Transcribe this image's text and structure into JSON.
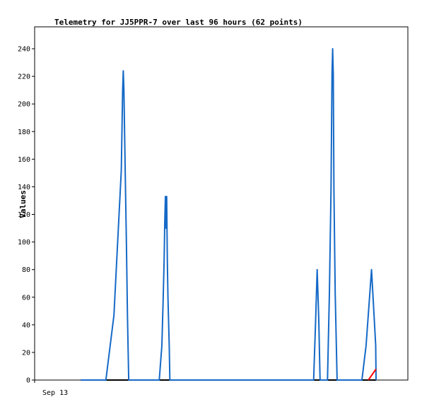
{
  "chart_data": {
    "type": "line",
    "title": "Telemetry for JJ5PPR-7 over last 96 hours (62 points)",
    "xlabel": "",
    "ylabel": "Values",
    "x_tick_labels": [
      "Sep 13"
    ],
    "xlim": [
      0,
      100
    ],
    "ylim": [
      0,
      248
    ],
    "y_ticks": [
      0,
      20,
      40,
      60,
      80,
      100,
      120,
      140,
      160,
      180,
      200,
      220,
      240
    ],
    "grid": false,
    "legend": "none",
    "series": [
      {
        "color": "#1569c7",
        "points": [
          [
            8.2,
            0
          ],
          [
            16.0,
            0
          ],
          [
            18.5,
            47
          ],
          [
            20.8,
            152
          ],
          [
            21.2,
            210
          ],
          [
            21.4,
            224
          ],
          [
            21.6,
            210
          ],
          [
            22.0,
            152
          ],
          [
            22.4,
            97
          ],
          [
            22.7,
            47
          ],
          [
            23.1,
            0
          ],
          [
            32.6,
            0
          ],
          [
            33.4,
            25
          ],
          [
            33.8,
            58
          ],
          [
            34.1,
            87
          ],
          [
            34.3,
            115
          ],
          [
            34.5,
            133
          ],
          [
            34.7,
            110
          ],
          [
            34.9,
            133
          ],
          [
            35.1,
            87
          ],
          [
            35.3,
            60
          ],
          [
            35.7,
            25
          ],
          [
            35.9,
            0
          ],
          [
            80.6,
            0
          ],
          [
            81.2,
            43
          ],
          [
            81.7,
            80
          ],
          [
            82.2,
            43
          ],
          [
            82.6,
            0
          ],
          [
            84.9,
            0
          ],
          [
            85.5,
            63
          ],
          [
            86.0,
            138
          ],
          [
            86.3,
            221
          ],
          [
            86.5,
            240
          ],
          [
            86.7,
            221
          ],
          [
            86.9,
            138
          ],
          [
            87.3,
            63
          ],
          [
            87.9,
            0
          ],
          [
            95.6,
            0
          ],
          [
            96.9,
            25
          ],
          [
            98.6,
            80
          ],
          [
            99.9,
            25
          ],
          [
            100.0,
            0
          ]
        ]
      },
      {
        "color": "#ff0000",
        "points": [
          [
            97.6,
            0
          ],
          [
            100.0,
            8
          ]
        ]
      }
    ],
    "baseline_color": "#000000"
  }
}
